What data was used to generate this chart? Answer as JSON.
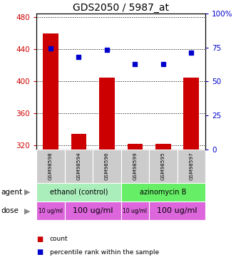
{
  "title": "GDS2050 / 5987_at",
  "samples": [
    "GSM98598",
    "GSM98594",
    "GSM98596",
    "GSM98599",
    "GSM98595",
    "GSM98597"
  ],
  "counts": [
    460,
    335,
    405,
    322,
    322,
    405
  ],
  "percentiles": [
    74,
    68,
    73,
    63,
    63,
    71
  ],
  "ylim_left": [
    315,
    485
  ],
  "ylim_right": [
    0,
    100
  ],
  "yticks_left": [
    320,
    360,
    400,
    440,
    480
  ],
  "yticks_right": [
    0,
    25,
    50,
    75,
    100
  ],
  "bar_color": "#cc0000",
  "dot_color": "#0000cc",
  "agent_groups": [
    {
      "label": "ethanol (control)",
      "start": 0,
      "end": 3,
      "color": "#aaeebb"
    },
    {
      "label": "azinomycin B",
      "start": 3,
      "end": 6,
      "color": "#66ee66"
    }
  ],
  "dose_groups": [
    {
      "label": "10 ug/ml",
      "start": 0,
      "end": 1,
      "color": "#dd66dd",
      "fontsize": 5.5
    },
    {
      "label": "100 ug/ml",
      "start": 1,
      "end": 3,
      "color": "#dd66dd",
      "fontsize": 8
    },
    {
      "label": "10 ug/ml",
      "start": 3,
      "end": 4,
      "color": "#dd66dd",
      "fontsize": 5.5
    },
    {
      "label": "100 ug/ml",
      "start": 4,
      "end": 6,
      "color": "#dd66dd",
      "fontsize": 8
    }
  ],
  "left_label_color": "#cc0000",
  "right_label_color": "#0000cc",
  "grid_color": "#000000",
  "background_color": "#ffffff",
  "sample_bg_color": "#cccccc",
  "bar_width": 0.55
}
